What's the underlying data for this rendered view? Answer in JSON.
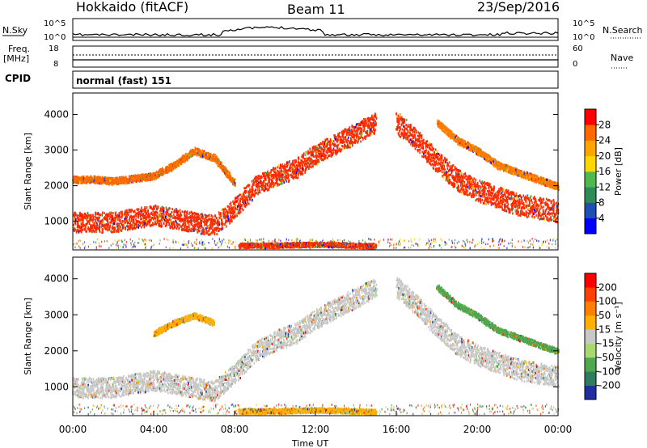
{
  "header": {
    "station": "Hokkaido (fitACF)",
    "beam": "Beam 11",
    "date": "23/Sep/2016"
  },
  "noise_panel": {
    "left_label": "N.Sky",
    "right_label": "N.Search",
    "y_top_tick": "10^5",
    "y_bottom_tick": "10^0"
  },
  "freq_panel": {
    "left_label_line1": "Freq.",
    "left_label_line2": "[MHz]",
    "left_top_tick": "18",
    "left_bottom_tick": "8",
    "right_label": "Nave",
    "right_top_tick": "60",
    "right_bottom_tick": "0"
  },
  "cpid": {
    "label": "CPID",
    "value": "normal (fast) 151"
  },
  "chart_data": [
    {
      "type": "heatmap",
      "name": "power",
      "ylabel": "Slant Range [km]",
      "yticks": [
        1000,
        2000,
        3000,
        4000
      ],
      "ylim": [
        200,
        4600
      ],
      "xlim": [
        0,
        24
      ],
      "colorbar": {
        "label": "Power [dB]",
        "ticks": [
          "4",
          "8",
          "12",
          "16",
          "20",
          "24",
          "28"
        ],
        "colors": [
          "#0000ff",
          "#1f4fb5",
          "#2e8b57",
          "#4fb84f",
          "#ffd700",
          "#ffa500",
          "#ff6a00",
          "#ff0000"
        ]
      },
      "bands": [
        {
          "points": [
            [
              0,
              1000
            ],
            [
              2,
              1000
            ],
            [
              4,
              1200
            ],
            [
              6,
              1000
            ],
            [
              7,
              900
            ],
            [
              8,
              1400
            ],
            [
              9,
              2000
            ],
            [
              10,
              2300
            ],
            [
              11,
              2500
            ],
            [
              12,
              2900
            ],
            [
              13,
              3200
            ],
            [
              14,
              3500
            ],
            [
              15,
              3800
            ]
          ],
          "width": 350,
          "color": "#ff2a00"
        },
        {
          "points": [
            [
              0,
              2200
            ],
            [
              1,
              2200
            ],
            [
              2,
              2150
            ],
            [
              4,
              2300
            ],
            [
              5,
              2600
            ],
            [
              6,
              3000
            ],
            [
              7,
              2800
            ],
            [
              8,
              2100
            ]
          ],
          "width": 120,
          "color": "#ff6a00"
        },
        {
          "points": [
            [
              16,
              3800
            ],
            [
              17,
              3300
            ],
            [
              18,
              2700
            ],
            [
              19,
              2200
            ],
            [
              20,
              1900
            ],
            [
              21,
              1700
            ],
            [
              22,
              1500
            ],
            [
              24,
              1300
            ]
          ],
          "width": 380,
          "color": "#ff2a00"
        },
        {
          "points": [
            [
              18,
              3800
            ],
            [
              19,
              3300
            ],
            [
              20,
              3000
            ],
            [
              21,
              2600
            ],
            [
              22,
              2400
            ],
            [
              24,
              2000
            ]
          ],
          "width": 120,
          "color": "#ff7a00"
        },
        {
          "points": [
            [
              8.2,
              350
            ],
            [
              10,
              350
            ],
            [
              12,
              380
            ],
            [
              14,
              350
            ],
            [
              15,
              330
            ]
          ],
          "width": 80,
          "color": "#ff2a00"
        }
      ]
    },
    {
      "type": "heatmap",
      "name": "velocity",
      "ylabel": "Slant Range [km]",
      "yticks": [
        1000,
        2000,
        3000,
        4000
      ],
      "ylim": [
        200,
        4600
      ],
      "xlim": [
        0,
        24
      ],
      "xticks": [
        "00:00",
        "04:00",
        "08:00",
        "12:00",
        "16:00",
        "20:00",
        "00:00"
      ],
      "xlabel": "Time UT",
      "colorbar": {
        "label": "Velocity [m s⁻¹]",
        "ticks": [
          "200",
          "100",
          "50",
          "15",
          "-15",
          "-50",
          "-100",
          "-200"
        ],
        "colors": [
          "#1f2f9f",
          "#2e7d5f",
          "#4fa84f",
          "#a8d870",
          "#c8c8c8",
          "#ffb000",
          "#ff8000",
          "#ff4000",
          "#ff0000"
        ]
      },
      "bands": [
        {
          "points": [
            [
              0,
              1000
            ],
            [
              2,
              1000
            ],
            [
              4,
              1200
            ],
            [
              6,
              1000
            ],
            [
              7,
              900
            ],
            [
              8,
              1400
            ],
            [
              9,
              2000
            ],
            [
              10,
              2300
            ],
            [
              11,
              2500
            ],
            [
              12,
              2900
            ],
            [
              13,
              3200
            ],
            [
              14,
              3500
            ],
            [
              15,
              3800
            ]
          ],
          "width": 350,
          "color": "#c8c8c8"
        },
        {
          "points": [
            [
              16,
              3800
            ],
            [
              17,
              3300
            ],
            [
              18,
              2700
            ],
            [
              19,
              2200
            ],
            [
              20,
              1900
            ],
            [
              21,
              1700
            ],
            [
              22,
              1500
            ],
            [
              24,
              1300
            ]
          ],
          "width": 360,
          "color": "#c8c8c8"
        },
        {
          "points": [
            [
              4,
              2500
            ],
            [
              5,
              2800
            ],
            [
              6,
              3000
            ],
            [
              7,
              2800
            ]
          ],
          "width": 100,
          "color": "#ffb000"
        },
        {
          "points": [
            [
              8.2,
              350
            ],
            [
              10,
              350
            ],
            [
              12,
              380
            ],
            [
              14,
              350
            ],
            [
              15,
              330
            ]
          ],
          "width": 80,
          "color": "#ffb000"
        },
        {
          "points": [
            [
              18,
              3800
            ],
            [
              19,
              3300
            ],
            [
              20,
              3000
            ],
            [
              21,
              2600
            ],
            [
              22,
              2400
            ],
            [
              24,
              2000
            ]
          ],
          "width": 100,
          "color": "#4fa84f"
        }
      ]
    }
  ]
}
